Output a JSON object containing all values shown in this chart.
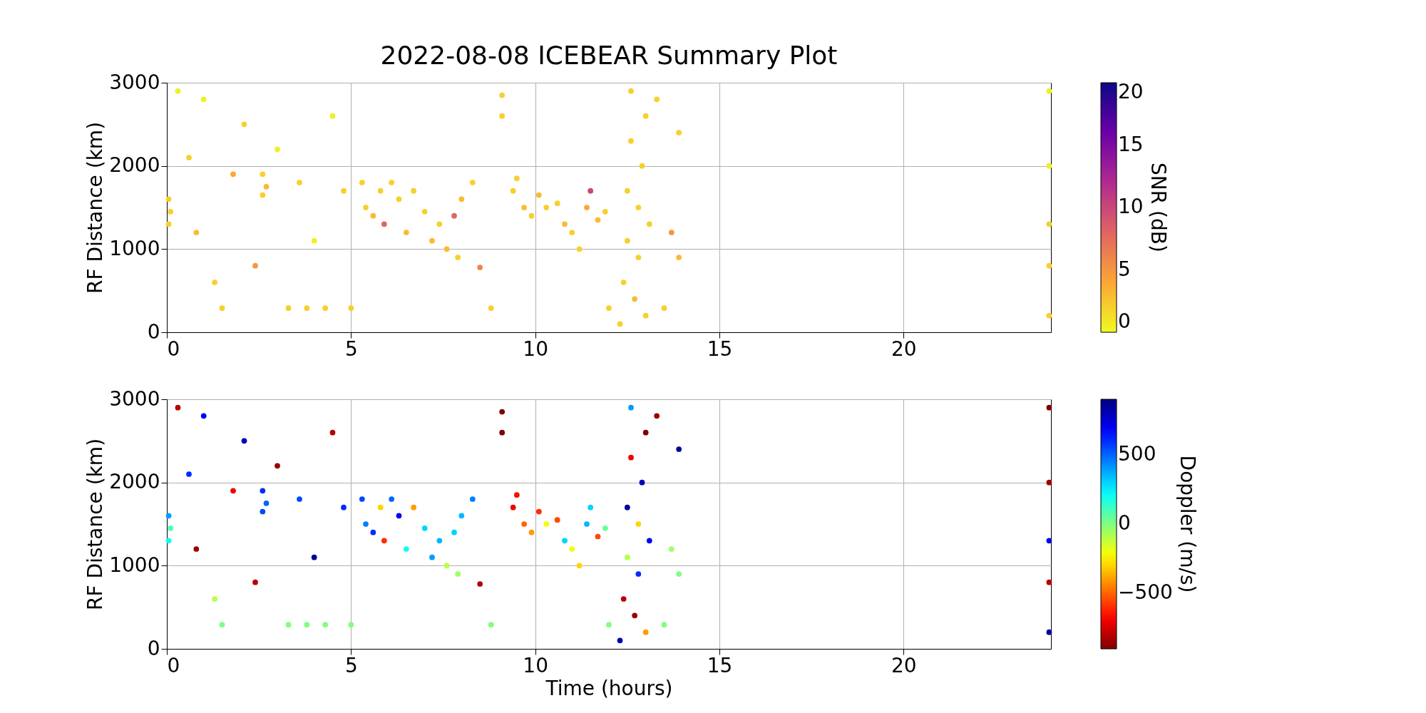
{
  "chart_data": [
    {
      "type": "scatter",
      "title": "2022-08-08 ICEBEAR Summary Plot",
      "ylabel": "RF Distance (km)",
      "clabel": "SNR (dB)",
      "clim": [
        0,
        20
      ],
      "cticks": [
        0,
        5,
        10,
        15,
        20
      ],
      "x": [
        0.05,
        0.05,
        0.1,
        0.3,
        0.6,
        0.8,
        1.0,
        1.3,
        1.5,
        1.8,
        2.1,
        2.4,
        2.6,
        2.6,
        2.7,
        3.0,
        3.3,
        3.6,
        3.8,
        4.0,
        4.3,
        4.5,
        4.8,
        5.0,
        5.3,
        5.4,
        5.6,
        5.8,
        5.9,
        6.1,
        6.3,
        6.5,
        6.7,
        7.0,
        7.2,
        7.4,
        7.6,
        7.8,
        7.9,
        8.0,
        8.3,
        8.5,
        8.8,
        9.1,
        9.1,
        9.4,
        9.5,
        9.7,
        9.9,
        10.1,
        10.3,
        10.6,
        10.8,
        11.0,
        11.2,
        11.4,
        11.5,
        11.7,
        11.9,
        12.0,
        12.3,
        12.4,
        12.5,
        12.5,
        12.6,
        12.6,
        12.7,
        12.8,
        12.8,
        12.9,
        13.0,
        13.0,
        13.1,
        13.3,
        13.5,
        13.7,
        13.9,
        13.9,
        23.95,
        23.95,
        23.95,
        23.95,
        23.95
      ],
      "values": [
        1300,
        1600,
        1450,
        2900,
        2100,
        1200,
        2800,
        600,
        290,
        1900,
        2500,
        800,
        1650,
        1900,
        1750,
        2200,
        290,
        1800,
        290,
        1100,
        290,
        2600,
        1700,
        290,
        1800,
        1500,
        1400,
        1700,
        1300,
        1800,
        1600,
        1200,
        1700,
        1450,
        1100,
        1300,
        1000,
        1400,
        900,
        1600,
        1800,
        780,
        290,
        2600,
        2850,
        1700,
        1850,
        1500,
        1400,
        1650,
        1500,
        1550,
        1300,
        1200,
        1000,
        1500,
        1700,
        1350,
        1450,
        290,
        100,
        600,
        1100,
        1700,
        2300,
        2900,
        400,
        900,
        1500,
        2000,
        2600,
        200,
        1300,
        2800,
        290,
        1200,
        2400,
        900,
        800,
        1300,
        2000,
        2900,
        200
      ],
      "cvalues": [
        2,
        2,
        2,
        0.5,
        2,
        3,
        0.5,
        2,
        2,
        4,
        2,
        5,
        2,
        2,
        3,
        0.5,
        2,
        2,
        2,
        0.5,
        2,
        0.5,
        2,
        2,
        2,
        2,
        3,
        2,
        8,
        2,
        2,
        3,
        2,
        2,
        3,
        2,
        3,
        8,
        2,
        3,
        2,
        6,
        2,
        2,
        2,
        2,
        2,
        3,
        2,
        3,
        2,
        2,
        3,
        2,
        2,
        4,
        10,
        3,
        2,
        2,
        2,
        2,
        2,
        2,
        2,
        2,
        3,
        2,
        2,
        2,
        2,
        2,
        2,
        2,
        2,
        5,
        2,
        3,
        2,
        2,
        0.5,
        0.5,
        2
      ],
      "xlim": [
        0,
        24
      ],
      "xticks": [
        0,
        5,
        10,
        15,
        20
      ],
      "ylim": [
        0,
        3000
      ],
      "yticks": [
        0,
        1000,
        2000,
        3000
      ],
      "grid": true,
      "marker": "circle"
    },
    {
      "type": "scatter",
      "xlabel": "Time (hours)",
      "ylabel": "RF Distance (km)",
      "clabel": "Doppler (m/s)",
      "clim": [
        -900,
        900
      ],
      "cticks": [
        {
          "value": -500,
          "label": "−500"
        },
        0,
        500
      ],
      "x": [
        0.05,
        0.05,
        0.1,
        0.3,
        0.6,
        0.8,
        1.0,
        1.3,
        1.5,
        1.8,
        2.1,
        2.4,
        2.6,
        2.6,
        2.7,
        3.0,
        3.3,
        3.6,
        3.8,
        4.0,
        4.3,
        4.5,
        4.8,
        5.0,
        5.3,
        5.4,
        5.6,
        5.8,
        5.9,
        6.1,
        6.3,
        6.5,
        6.7,
        7.0,
        7.2,
        7.4,
        7.6,
        7.8,
        7.9,
        8.0,
        8.3,
        8.5,
        8.8,
        9.1,
        9.1,
        9.4,
        9.5,
        9.7,
        9.9,
        10.1,
        10.3,
        10.6,
        10.8,
        11.0,
        11.2,
        11.4,
        11.5,
        11.7,
        11.9,
        12.0,
        12.3,
        12.4,
        12.5,
        12.5,
        12.6,
        12.6,
        12.7,
        12.8,
        12.8,
        12.9,
        13.0,
        13.0,
        13.1,
        13.3,
        13.5,
        13.7,
        13.9,
        13.9,
        23.95,
        23.95,
        23.95,
        23.95,
        23.95
      ],
      "values": [
        1300,
        1600,
        1450,
        2900,
        2100,
        1200,
        2800,
        600,
        290,
        1900,
        2500,
        800,
        1650,
        1900,
        1750,
        2200,
        290,
        1800,
        290,
        1100,
        290,
        2600,
        1700,
        290,
        1800,
        1500,
        1400,
        1700,
        1300,
        1800,
        1600,
        1200,
        1700,
        1450,
        1100,
        1300,
        1000,
        1400,
        900,
        1600,
        1800,
        780,
        290,
        2600,
        2850,
        1700,
        1850,
        1500,
        1400,
        1650,
        1500,
        1550,
        1300,
        1200,
        1000,
        1500,
        1700,
        1350,
        1450,
        290,
        100,
        600,
        1100,
        1700,
        2300,
        2900,
        400,
        900,
        1500,
        2000,
        2600,
        200,
        1300,
        2800,
        290,
        1200,
        2400,
        900,
        800,
        1300,
        2000,
        2900,
        200
      ],
      "cvalues": [
        200,
        400,
        100,
        -800,
        600,
        -850,
        700,
        -100,
        0,
        -700,
        800,
        -800,
        550,
        600,
        500,
        -850,
        0,
        550,
        0,
        850,
        0,
        -800,
        600,
        0,
        550,
        450,
        600,
        -300,
        -600,
        500,
        700,
        200,
        -400,
        300,
        400,
        350,
        -100,
        300,
        -50,
        350,
        450,
        -800,
        0,
        -900,
        -900,
        -700,
        -650,
        -500,
        -400,
        -600,
        -200,
        -550,
        300,
        -200,
        -300,
        350,
        300,
        -550,
        50,
        0,
        800,
        -800,
        -100,
        850,
        -700,
        400,
        -850,
        600,
        -300,
        800,
        -900,
        -400,
        700,
        -850,
        0,
        -50,
        850,
        0,
        -800,
        700,
        -850,
        -900,
        850
      ],
      "xlim": [
        0,
        24
      ],
      "xticks": [
        0,
        5,
        10,
        15,
        20
      ],
      "ylim": [
        0,
        3000
      ],
      "yticks": [
        0,
        1000,
        2000,
        3000
      ],
      "grid": true,
      "marker": "circle"
    }
  ]
}
